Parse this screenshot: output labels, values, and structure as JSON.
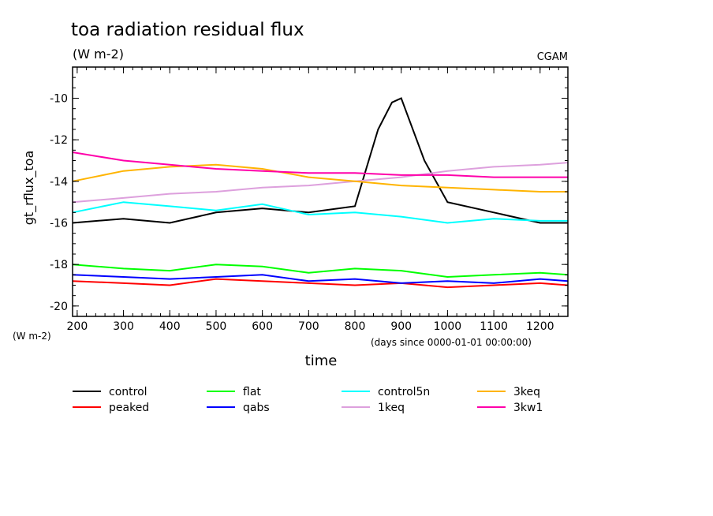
{
  "chart_data": {
    "type": "line",
    "title": "toa radiation residual flux",
    "units": "(W m-2)",
    "source_label": "CGAM",
    "ylabel": "gt_rflux_toa",
    "y_unit_label": "(W m-2)",
    "xlabel": "time",
    "x_unit_label": "(days since 0000-01-01 00:00:00)",
    "xlim": [
      190,
      1260
    ],
    "ylim": [
      -20.5,
      -8.5
    ],
    "x_ticks": [
      200,
      300,
      400,
      500,
      600,
      700,
      800,
      900,
      1000,
      1100,
      1200
    ],
    "x_tick_labels": [
      "200",
      "300",
      "400",
      "500",
      "600",
      "700",
      "800",
      "900",
      "1000",
      "1100",
      "1200"
    ],
    "y_ticks": [
      -20,
      -18,
      -16,
      -14,
      -12,
      -10
    ],
    "y_tick_labels": [
      "-20",
      "-18",
      "-16",
      "-14",
      "-12",
      "-10"
    ],
    "grid": false,
    "legend_position": "bottom",
    "series": [
      {
        "name": "control",
        "color": "#000000",
        "x": [
          190,
          300,
          400,
          500,
          600,
          700,
          800,
          850,
          880,
          900,
          950,
          1000,
          1100,
          1200,
          1260
        ],
        "values": [
          -16.0,
          -15.8,
          -16.0,
          -15.5,
          -15.3,
          -15.5,
          -15.2,
          -11.5,
          -10.2,
          -10.0,
          -13.0,
          -15.0,
          -15.5,
          -16.0,
          -16.0
        ]
      },
      {
        "name": "peaked",
        "color": "#ff0000",
        "x": [
          190,
          300,
          400,
          500,
          600,
          700,
          800,
          900,
          1000,
          1100,
          1200,
          1260
        ],
        "values": [
          -18.8,
          -18.9,
          -19.0,
          -18.7,
          -18.8,
          -18.9,
          -19.0,
          -18.9,
          -19.1,
          -19.0,
          -18.9,
          -19.0
        ]
      },
      {
        "name": "flat",
        "color": "#00ff00",
        "x": [
          190,
          300,
          400,
          500,
          600,
          700,
          800,
          900,
          1000,
          1100,
          1200,
          1260
        ],
        "values": [
          -18.0,
          -18.2,
          -18.3,
          -18.0,
          -18.1,
          -18.4,
          -18.2,
          -18.3,
          -18.6,
          -18.5,
          -18.4,
          -18.5
        ]
      },
      {
        "name": "qabs",
        "color": "#0000ff",
        "x": [
          190,
          300,
          400,
          500,
          600,
          700,
          800,
          900,
          1000,
          1100,
          1200,
          1260
        ],
        "values": [
          -18.5,
          -18.6,
          -18.7,
          -18.6,
          -18.5,
          -18.8,
          -18.7,
          -18.9,
          -18.8,
          -18.9,
          -18.7,
          -18.8
        ]
      },
      {
        "name": "control5n",
        "color": "#00ffff",
        "x": [
          190,
          300,
          400,
          500,
          600,
          700,
          800,
          900,
          1000,
          1100,
          1200,
          1260
        ],
        "values": [
          -15.5,
          -15.0,
          -15.2,
          -15.4,
          -15.1,
          -15.6,
          -15.5,
          -15.7,
          -16.0,
          -15.8,
          -15.9,
          -15.9
        ]
      },
      {
        "name": "1keq",
        "color": "#dda0dd",
        "x": [
          190,
          300,
          400,
          500,
          600,
          700,
          800,
          900,
          1000,
          1100,
          1200,
          1260
        ],
        "values": [
          -15.0,
          -14.8,
          -14.6,
          -14.5,
          -14.3,
          -14.2,
          -14.0,
          -13.8,
          -13.5,
          -13.3,
          -13.2,
          -13.1
        ]
      },
      {
        "name": "3keq",
        "color": "#ffb400",
        "x": [
          190,
          300,
          400,
          500,
          600,
          700,
          800,
          900,
          1000,
          1100,
          1200,
          1260
        ],
        "values": [
          -14.0,
          -13.5,
          -13.3,
          -13.2,
          -13.4,
          -13.8,
          -14.0,
          -14.2,
          -14.3,
          -14.4,
          -14.5,
          -14.5
        ]
      },
      {
        "name": "3kw1",
        "color": "#ff00aa",
        "x": [
          190,
          300,
          400,
          500,
          600,
          700,
          800,
          900,
          1000,
          1100,
          1200,
          1260
        ],
        "values": [
          -12.6,
          -13.0,
          -13.2,
          -13.4,
          -13.5,
          -13.6,
          -13.6,
          -13.7,
          -13.7,
          -13.8,
          -13.8,
          -13.8
        ]
      }
    ]
  }
}
